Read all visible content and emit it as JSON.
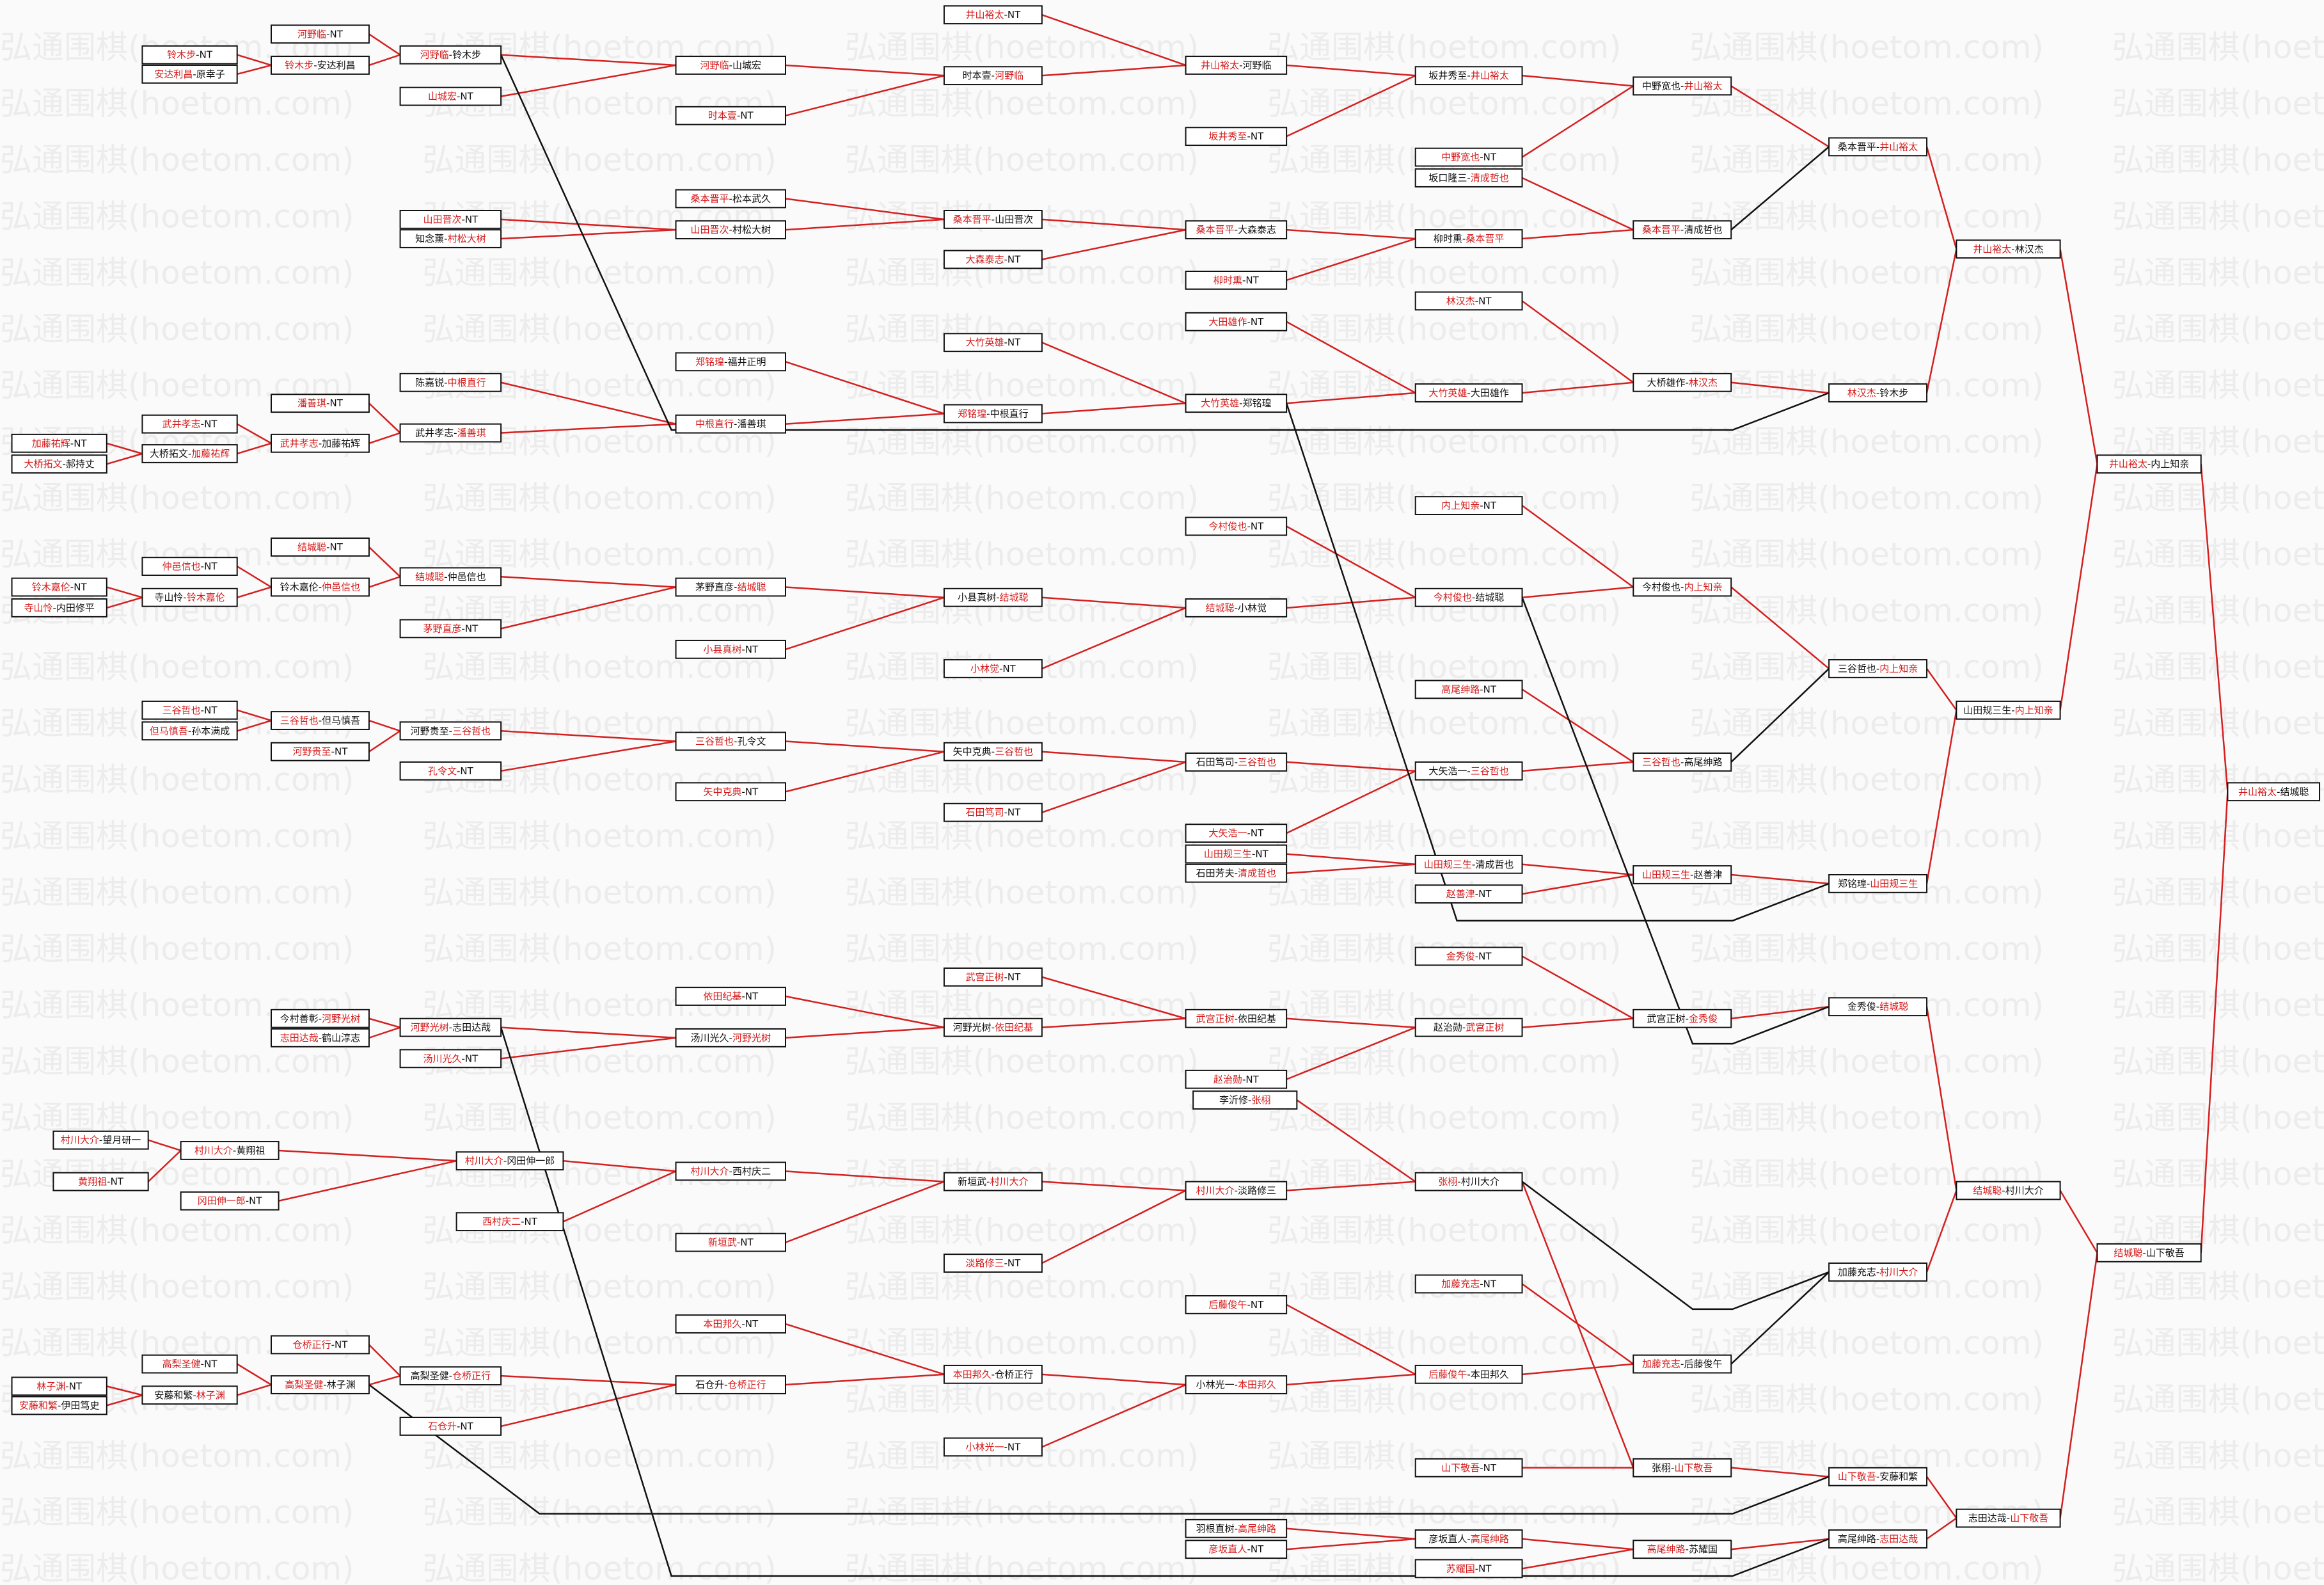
{
  "watermark": "弘通围棋(hoetom.com)",
  "nodes": [
    {
      "label": "加藤祐辉-NT"
    },
    {
      "label": "大桥拓文-郝持丈"
    },
    {
      "label": "铃木嘉伦-NT"
    },
    {
      "label": "寺山怜-内田修平"
    },
    {
      "label": "林子渊-NT"
    },
    {
      "label": "安藤和繁-伊田笃史"
    },
    {
      "label": "铃木步-NT"
    },
    {
      "label": "安达利昌-原幸子"
    },
    {
      "label": "武井孝志-NT"
    },
    {
      "label": "大桥拓文-加藤祐辉"
    },
    {
      "label": "仲邑信也-NT"
    },
    {
      "label": "寺山怜-铃木嘉伦"
    },
    {
      "label": "三谷哲也-NT"
    },
    {
      "label": "但马慎吾-孙本满成"
    },
    {
      "label": "村川大介-望月研一"
    },
    {
      "label": "黄翔祖-NT"
    },
    {
      "label": "高梨圣健-NT"
    },
    {
      "label": "安藤和繁-林子渊"
    },
    {
      "label": "河野临-NT"
    },
    {
      "label": "铃木步-安达利昌"
    },
    {
      "label": "潘善琪-NT"
    },
    {
      "label": "武井孝志-加藤祐辉"
    },
    {
      "label": "结城聪-NT"
    },
    {
      "label": "铃木嘉伦-仲邑信也"
    },
    {
      "label": "三谷哲也-但马慎吾"
    },
    {
      "label": "河野贵至-NT"
    },
    {
      "label": "今村善彰-河野光树"
    },
    {
      "label": "志田达哉-鹤山淳志"
    },
    {
      "label": "村川大介-黄翔祖"
    },
    {
      "label": "冈田伸一郎-NT"
    },
    {
      "label": "仓桥正行-NT"
    },
    {
      "label": "高梨圣健-林子渊"
    },
    {
      "label": "河野临-铃木步"
    },
    {
      "label": "山城宏-NT"
    },
    {
      "label": "山田晋次-NT"
    },
    {
      "label": "知念薰-村松大树"
    },
    {
      "label": "陈嘉锐-中根直行"
    },
    {
      "label": "武井孝志-潘善琪"
    },
    {
      "label": "结城聪-仲邑信也"
    },
    {
      "label": "茅野直彦-NT"
    },
    {
      "label": "河野贵至-三谷哲也"
    },
    {
      "label": "孔令文-NT"
    },
    {
      "label": "河野光树-志田达哉"
    },
    {
      "label": "汤川光久-NT"
    },
    {
      "label": "高梨圣健-仓桥正行"
    },
    {
      "label": "石仓升-NT"
    },
    {
      "label": "村川大介-冈田伸一郎"
    },
    {
      "label": "西村庆二-NT"
    },
    {
      "label": "河野临-山城宏"
    },
    {
      "label": "时本壹-NT"
    },
    {
      "label": "桑本晋平-松本武久"
    },
    {
      "label": "山田晋次-村松大树"
    },
    {
      "label": "郑铭瑝-福井正明"
    },
    {
      "label": "中根直行-潘善琪"
    },
    {
      "label": "茅野直彦-结城聪"
    },
    {
      "label": "小县真树-NT"
    },
    {
      "label": "三谷哲也-孔令文"
    },
    {
      "label": "矢中克典-NT"
    },
    {
      "label": "依田纪基-NT"
    },
    {
      "label": "汤川光久-河野光树"
    },
    {
      "label": "村川大介-西村庆二"
    },
    {
      "label": "新垣武-NT"
    },
    {
      "label": "本田邦久-NT"
    },
    {
      "label": "石仓升-仓桥正行"
    },
    {
      "label": "井山裕太-NT"
    },
    {
      "label": "时本壹-河野临"
    },
    {
      "label": "桑本晋平-山田晋次"
    },
    {
      "label": "大森泰志-NT"
    },
    {
      "label": "大竹英雄-NT"
    },
    {
      "label": "郑铭瑝-中根直行"
    },
    {
      "label": "小县真树-结城聪"
    },
    {
      "label": "小林觉-NT"
    },
    {
      "label": "矢中克典-三谷哲也"
    },
    {
      "label": "石田笃司-NT"
    },
    {
      "label": "武宫正树-NT"
    },
    {
      "label": "河野光树-依田纪基"
    },
    {
      "label": "新垣武-村川大介"
    },
    {
      "label": "淡路修三-NT"
    },
    {
      "label": "本田邦久-仓桥正行"
    },
    {
      "label": "小林光一-NT"
    },
    {
      "label": "井山裕太-河野临"
    },
    {
      "label": "坂井秀至-NT"
    },
    {
      "label": "桑本晋平-大森泰志"
    },
    {
      "label": "柳时熏-NT"
    },
    {
      "label": "大田雄作-NT"
    },
    {
      "label": "大竹英雄-郑铭瑝"
    },
    {
      "label": "今村俊也-NT"
    },
    {
      "label": "结城聪-小林觉"
    },
    {
      "label": "石田笃司-三谷哲也"
    },
    {
      "label": "大矢浩一-NT"
    },
    {
      "label": "山田规三生-NT"
    },
    {
      "label": "石田芳夫-清成哲也"
    },
    {
      "label": "武宫正树-依田纪基"
    },
    {
      "label": "赵治勋-NT"
    },
    {
      "label": "李沂修-张栩"
    },
    {
      "label": "村川大介-淡路修三"
    },
    {
      "label": "后藤俊午-NT"
    },
    {
      "label": "小林光一-本田邦久"
    },
    {
      "label": "羽根直树-高尾绅路"
    },
    {
      "label": "彦坂直人-NT"
    },
    {
      "label": "坂井秀至-井山裕太"
    },
    {
      "label": "中野宽也-NT"
    },
    {
      "label": "坂口隆三-清成哲也"
    },
    {
      "label": "柳时熏-桑本晋平"
    },
    {
      "label": "林汉杰-NT"
    },
    {
      "label": "大竹英雄-大田雄作"
    },
    {
      "label": "内上知亲-NT"
    },
    {
      "label": "今村俊也-结城聪"
    },
    {
      "label": "高尾绅路-NT"
    },
    {
      "label": "大矢浩一-三谷哲也"
    },
    {
      "label": "山田规三生-清成哲也"
    },
    {
      "label": "赵善津-NT"
    },
    {
      "label": "金秀俊-NT"
    },
    {
      "label": "赵治勋-武宫正树"
    },
    {
      "label": "张栩-村川大介"
    },
    {
      "label": "加藤充志-NT"
    },
    {
      "label": "后藤俊午-本田邦久"
    },
    {
      "label": "山下敬吾-NT"
    },
    {
      "label": "彦坂直人-高尾绅路"
    },
    {
      "label": "苏耀国-NT"
    },
    {
      "label": "中野宽也-井山裕太"
    },
    {
      "label": "桑本晋平-清成哲也"
    },
    {
      "label": "大桥雄作-林汉杰"
    },
    {
      "label": "今村俊也-内上知亲"
    },
    {
      "label": "三谷哲也-高尾绅路"
    },
    {
      "label": "山田规三生-赵善津"
    },
    {
      "label": "武宫正树-金秀俊"
    },
    {
      "label": "加藤充志-后藤俊午"
    },
    {
      "label": "张栩-山下敬吾"
    },
    {
      "label": "高尾绅路-苏耀国"
    },
    {
      "label": "桑本晋平-井山裕太"
    },
    {
      "label": "林汉杰-铃木步"
    },
    {
      "label": "三谷哲也-内上知亲"
    },
    {
      "label": "郑铭瑝-山田规三生"
    },
    {
      "label": "金秀俊-结城聪"
    },
    {
      "label": "加藤充志-村川大介"
    },
    {
      "label": "山下敬吾-安藤和繁"
    },
    {
      "label": "高尾绅路-志田达哉"
    },
    {
      "label": "井山裕太-林汉杰"
    },
    {
      "label": "山田规三生-内上知亲"
    },
    {
      "label": "结城聪-村川大介"
    },
    {
      "label": "志田达哉-山下敬吾"
    },
    {
      "label": "井山裕太-内上知亲"
    },
    {
      "label": "结城聪-山下敬吾"
    },
    {
      "label": "井山裕太-结城聪"
    }
  ]
}
